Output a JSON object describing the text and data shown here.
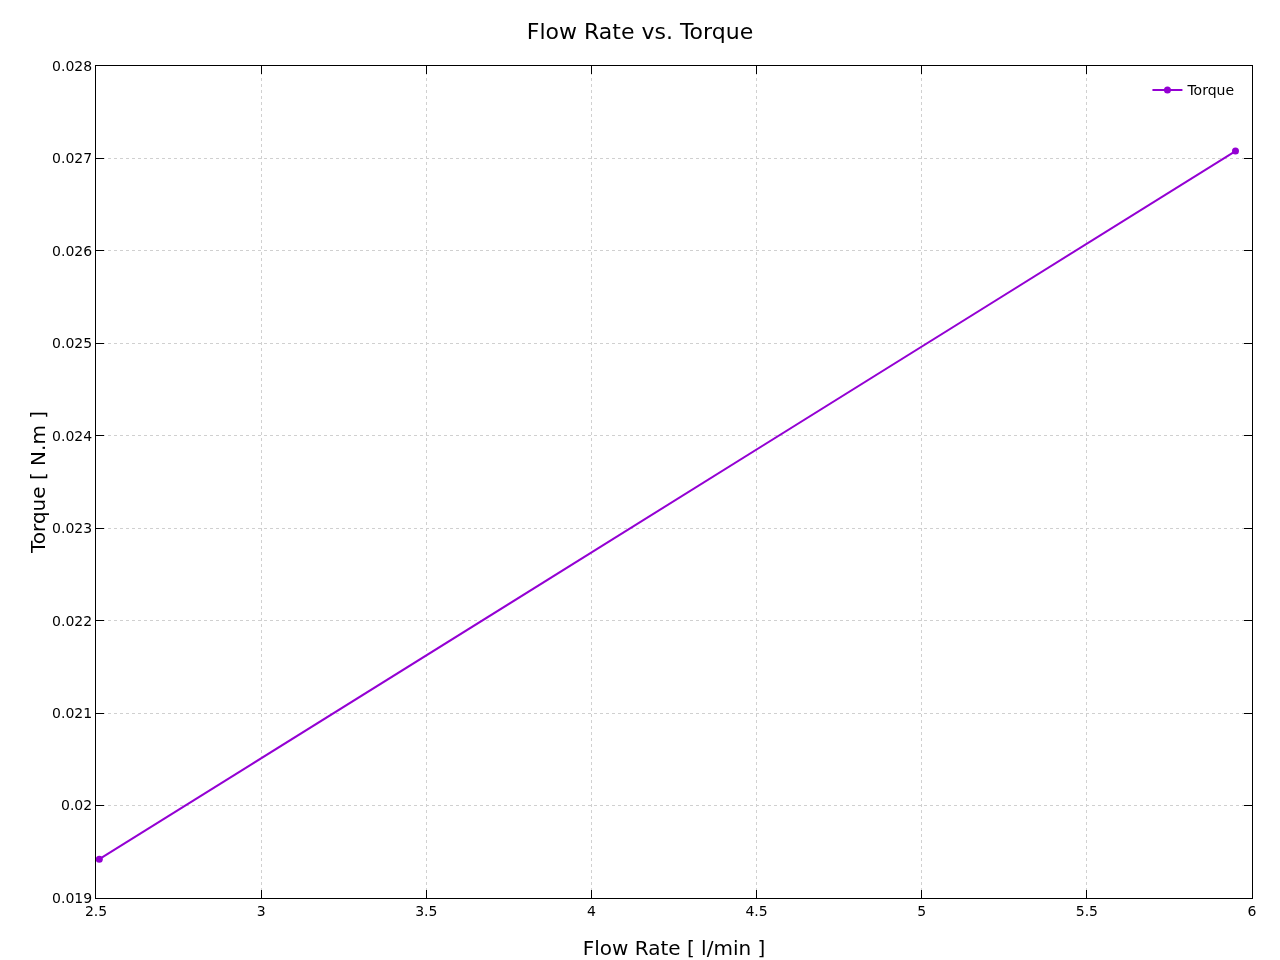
{
  "chart_data": {
    "type": "line",
    "title": "Flow Rate vs. Torque",
    "xlabel": "Flow Rate [ l/min ]",
    "ylabel": "Torque [ N.m ]",
    "x": [
      2.51,
      5.95
    ],
    "series": [
      {
        "name": "Torque",
        "color": "#9400d3",
        "values": [
          0.01942,
          0.02708
        ]
      }
    ],
    "xlim": [
      2.5,
      6
    ],
    "xticks": [
      2.5,
      3,
      3.5,
      4,
      4.5,
      5,
      5.5,
      6
    ],
    "ylim": [
      0.019,
      0.028
    ],
    "yticks": [
      0.019,
      0.02,
      0.021,
      0.022,
      0.023,
      0.024,
      0.025,
      0.026,
      0.027,
      0.028
    ],
    "grid": true,
    "legend": "top right",
    "marker": "circle",
    "line_style": "solid"
  }
}
